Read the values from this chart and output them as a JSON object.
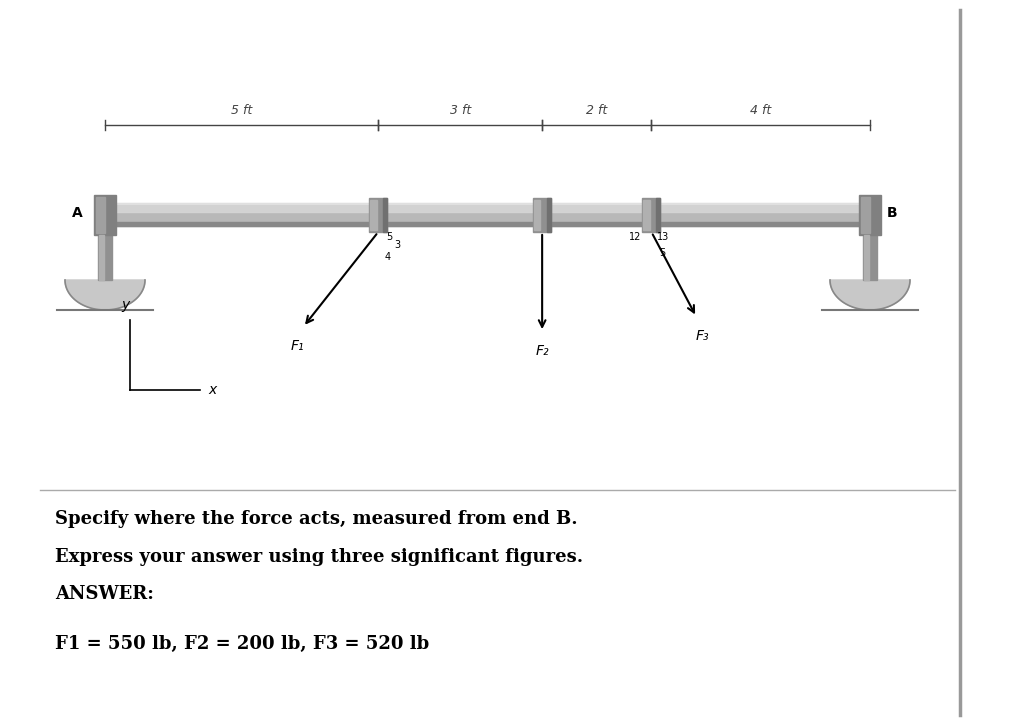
{
  "bg_color": "#ffffff",
  "beam_color": "#b0b0b0",
  "beam_highlight": "#d8d8d8",
  "beam_shadow": "#888888",
  "collar_color": "#909090",
  "support_color": "#c0c0c0",
  "dim_5ft": "5 ft",
  "dim_3ft": "3 ft",
  "dim_2ft": "2 ft",
  "dim_4ft": "4 ft",
  "label_A": "A",
  "label_B": "B",
  "label_F1": "F₁",
  "label_F2": "F₂",
  "label_F3": "F₃",
  "question_line1": "Specify where the force acts, measured from end B.",
  "question_line2": "Express your answer using three significant figures.",
  "question_line3": "ANSWER:",
  "answer_line": "F1 = 550 lb, F2 = 200 lb, F3 = 520 lb",
  "text_color": "#000000",
  "dim_color": "#444444",
  "right_line_color": "#999999",
  "sep_line_color": "#aaaaaa"
}
